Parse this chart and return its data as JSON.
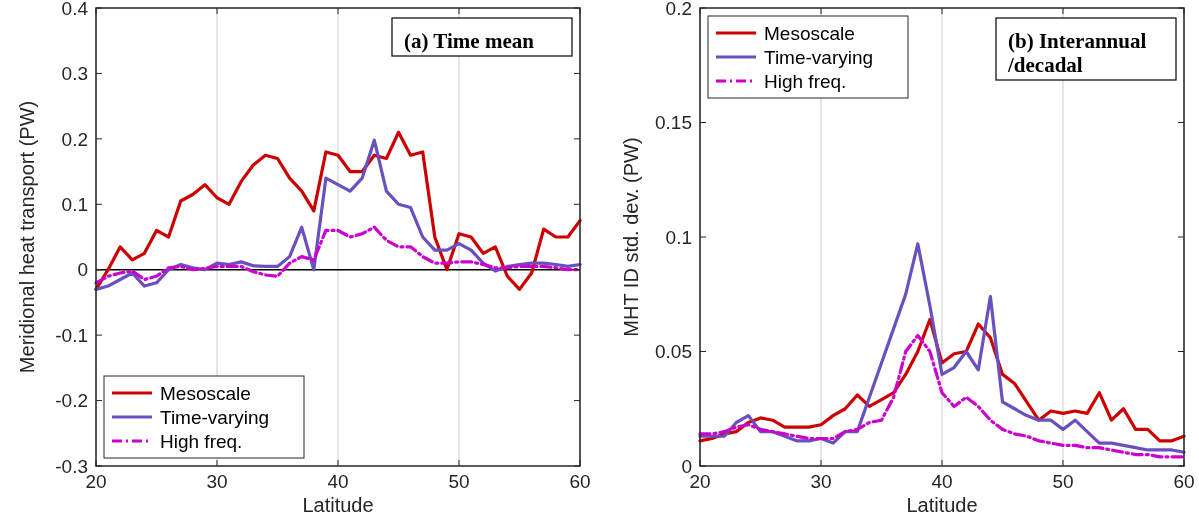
{
  "chart_data": [
    {
      "type": "line",
      "title": "(a) Time mean",
      "xlabel": "Latitude",
      "ylabel": "Meridional heat transport (PW)",
      "x": [
        20,
        21,
        22,
        23,
        24,
        25,
        26,
        27,
        28,
        29,
        30,
        31,
        32,
        33,
        34,
        35,
        36,
        37,
        38,
        39,
        40,
        41,
        42,
        43,
        44,
        45,
        46,
        47,
        48,
        49,
        50,
        51,
        52,
        53,
        54,
        55,
        56,
        57,
        58,
        59,
        60
      ],
      "xlim": [
        20,
        60
      ],
      "xticks": [
        20,
        30,
        40,
        50,
        60
      ],
      "ylim": [
        -0.3,
        0.4
      ],
      "yticks": [
        -0.3,
        -0.2,
        -0.1,
        0,
        0.1,
        0.2,
        0.3,
        0.4
      ],
      "grid": "x",
      "legend": "bottom left",
      "ref_lines": [
        {
          "axis": "y",
          "value": 0,
          "color": "#000000"
        }
      ],
      "series": [
        {
          "name": "Mesoscale",
          "color": "#cc0000",
          "line_style": "solid",
          "values": [
            -0.03,
            0.0,
            0.035,
            0.015,
            0.025,
            0.06,
            0.05,
            0.105,
            0.115,
            0.13,
            0.11,
            0.1,
            0.135,
            0.16,
            0.175,
            0.17,
            0.14,
            0.12,
            0.09,
            0.18,
            0.175,
            0.15,
            0.15,
            0.175,
            0.17,
            0.21,
            0.175,
            0.18,
            0.05,
            0.0,
            0.055,
            0.05,
            0.025,
            0.035,
            -0.01,
            -0.03,
            -0.005,
            0.062,
            0.05,
            0.05,
            0.075
          ]
        },
        {
          "name": "Time-varying",
          "color": "#6a4fbf",
          "line_style": "solid",
          "values": [
            -0.03,
            -0.025,
            -0.015,
            -0.005,
            -0.025,
            -0.02,
            0.0,
            0.008,
            0.003,
            0.0,
            0.01,
            0.008,
            0.012,
            0.006,
            0.005,
            0.005,
            0.02,
            0.065,
            0.0,
            0.14,
            0.13,
            0.12,
            0.14,
            0.198,
            0.12,
            0.1,
            0.095,
            0.05,
            0.03,
            0.03,
            0.04,
            0.03,
            0.01,
            -0.002,
            0.005,
            0.008,
            0.01,
            0.01,
            0.008,
            0.005,
            0.008
          ]
        },
        {
          "name": "High freq.",
          "color": "#cc00cc",
          "line_style": "dashed",
          "values": [
            -0.02,
            -0.01,
            -0.005,
            -0.002,
            -0.015,
            -0.01,
            0.003,
            0.005,
            0.0,
            0.002,
            0.005,
            0.005,
            0.005,
            -0.003,
            -0.008,
            -0.01,
            0.01,
            0.02,
            0.015,
            0.06,
            0.06,
            0.05,
            0.055,
            0.065,
            0.045,
            0.035,
            0.035,
            0.02,
            0.01,
            0.01,
            0.012,
            0.012,
            0.008,
            0.003,
            0.003,
            0.005,
            0.005,
            0.005,
            0.003,
            0.0,
            0.0
          ]
        }
      ]
    },
    {
      "type": "line",
      "title": "(b) Interannual\n/decadal",
      "xlabel": "Latitude",
      "ylabel": "MHT ID std. dev. (PW)",
      "x": [
        20,
        21,
        22,
        23,
        24,
        25,
        26,
        27,
        28,
        29,
        30,
        31,
        32,
        33,
        34,
        35,
        36,
        37,
        38,
        39,
        40,
        41,
        42,
        43,
        44,
        45,
        46,
        47,
        48,
        49,
        50,
        51,
        52,
        53,
        54,
        55,
        56,
        57,
        58,
        59,
        60
      ],
      "xlim": [
        20,
        60
      ],
      "xticks": [
        20,
        30,
        40,
        50,
        60
      ],
      "ylim": [
        0,
        0.2
      ],
      "yticks": [
        0,
        0.05,
        0.1,
        0.15,
        0.2
      ],
      "grid": "x",
      "legend": "top left",
      "series": [
        {
          "name": "Mesoscale",
          "color": "#cc0000",
          "line_style": "solid",
          "values": [
            0.011,
            0.012,
            0.014,
            0.015,
            0.019,
            0.021,
            0.02,
            0.017,
            0.017,
            0.017,
            0.018,
            0.022,
            0.025,
            0.031,
            0.026,
            0.029,
            0.032,
            0.04,
            0.05,
            0.064,
            0.045,
            0.049,
            0.05,
            0.062,
            0.056,
            0.04,
            0.036,
            0.028,
            0.02,
            0.024,
            0.023,
            0.024,
            0.023,
            0.032,
            0.02,
            0.025,
            0.016,
            0.016,
            0.011,
            0.011,
            0.013
          ]
        },
        {
          "name": "Time-varying",
          "color": "#6a4fbf",
          "line_style": "solid",
          "values": [
            0.013,
            0.013,
            0.013,
            0.019,
            0.022,
            0.015,
            0.015,
            0.013,
            0.011,
            0.011,
            0.012,
            0.01,
            0.015,
            0.015,
            0.03,
            0.045,
            0.06,
            0.075,
            0.097,
            0.07,
            0.04,
            0.043,
            0.05,
            0.042,
            0.074,
            0.028,
            0.025,
            0.022,
            0.02,
            0.02,
            0.016,
            0.02,
            0.015,
            0.01,
            0.01,
            0.009,
            0.008,
            0.007,
            0.007,
            0.007,
            0.006
          ]
        },
        {
          "name": "High freq.",
          "color": "#cc00cc",
          "line_style": "dashed",
          "values": [
            0.014,
            0.014,
            0.015,
            0.017,
            0.018,
            0.016,
            0.015,
            0.014,
            0.013,
            0.012,
            0.012,
            0.012,
            0.015,
            0.016,
            0.019,
            0.02,
            0.03,
            0.05,
            0.057,
            0.05,
            0.032,
            0.026,
            0.03,
            0.026,
            0.02,
            0.016,
            0.014,
            0.013,
            0.011,
            0.01,
            0.009,
            0.009,
            0.008,
            0.008,
            0.007,
            0.006,
            0.005,
            0.005,
            0.004,
            0.004,
            0.004
          ]
        }
      ]
    }
  ]
}
